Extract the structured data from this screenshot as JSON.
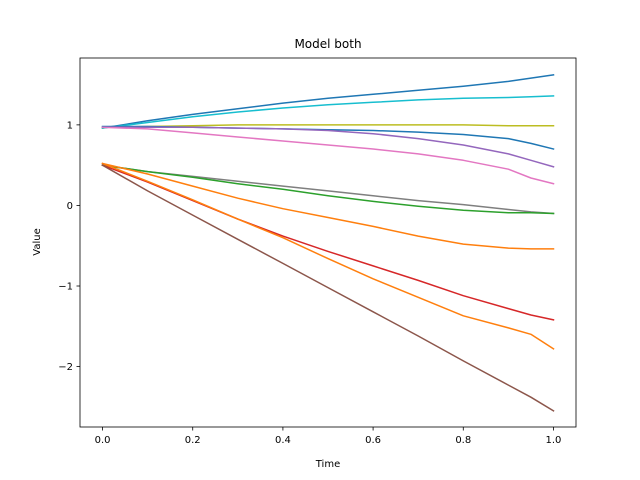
{
  "chart_data": {
    "type": "line",
    "title": "Model both",
    "xlabel": "Time",
    "ylabel": "Value",
    "xlim": [
      -0.05,
      1.05
    ],
    "ylim": [
      -2.75,
      1.83
    ],
    "xticks": [
      0.0,
      0.2,
      0.4,
      0.6,
      0.8,
      1.0
    ],
    "xtick_labels": [
      "0.0",
      "0.2",
      "0.4",
      "0.6",
      "0.8",
      "1.0"
    ],
    "yticks": [
      -2,
      -1,
      0,
      1
    ],
    "ytick_labels": [
      "−2",
      "−1",
      "0",
      "1"
    ],
    "grid": false,
    "legend": "none",
    "x": [
      0.0,
      0.1,
      0.2,
      0.3,
      0.4,
      0.5,
      0.6,
      0.7,
      0.8,
      0.9,
      0.95,
      1.0
    ],
    "series": [
      {
        "color": "#1f77b4",
        "values": [
          0.96,
          1.05,
          1.13,
          1.2,
          1.27,
          1.33,
          1.38,
          1.43,
          1.48,
          1.54,
          1.58,
          1.62
        ]
      },
      {
        "color": "#17becf",
        "values": [
          0.96,
          1.03,
          1.1,
          1.16,
          1.21,
          1.25,
          1.28,
          1.31,
          1.33,
          1.34,
          1.35,
          1.36
        ]
      },
      {
        "color": "#bcbd22",
        "values": [
          0.97,
          0.98,
          0.99,
          1.0,
          1.0,
          1.0,
          1.0,
          1.0,
          1.0,
          0.99,
          0.99,
          0.99
        ]
      },
      {
        "color": "#1f77b4",
        "values": [
          0.98,
          0.98,
          0.97,
          0.96,
          0.95,
          0.94,
          0.93,
          0.91,
          0.88,
          0.83,
          0.77,
          0.7
        ]
      },
      {
        "color": "#9467bd",
        "values": [
          0.97,
          0.97,
          0.97,
          0.96,
          0.95,
          0.93,
          0.89,
          0.83,
          0.75,
          0.64,
          0.56,
          0.48
        ]
      },
      {
        "color": "#e377c2",
        "values": [
          0.97,
          0.95,
          0.9,
          0.85,
          0.8,
          0.75,
          0.7,
          0.64,
          0.56,
          0.45,
          0.34,
          0.27
        ]
      },
      {
        "color": "#7f7f7f",
        "values": [
          0.5,
          0.42,
          0.36,
          0.3,
          0.24,
          0.18,
          0.12,
          0.06,
          0.01,
          -0.05,
          -0.08,
          -0.1
        ]
      },
      {
        "color": "#2ca02c",
        "values": [
          0.5,
          0.42,
          0.35,
          0.27,
          0.2,
          0.12,
          0.05,
          -0.01,
          -0.06,
          -0.09,
          -0.09,
          -0.1
        ]
      },
      {
        "color": "#ff7f0e",
        "values": [
          0.52,
          0.39,
          0.24,
          0.09,
          -0.04,
          -0.15,
          -0.26,
          -0.38,
          -0.48,
          -0.53,
          -0.54,
          -0.54
        ]
      },
      {
        "color": "#d62728",
        "values": [
          0.5,
          0.29,
          0.06,
          -0.17,
          -0.38,
          -0.57,
          -0.75,
          -0.93,
          -1.12,
          -1.28,
          -1.36,
          -1.42
        ]
      },
      {
        "color": "#ff7f0e",
        "values": [
          0.52,
          0.3,
          0.07,
          -0.17,
          -0.4,
          -0.66,
          -0.91,
          -1.14,
          -1.37,
          -1.52,
          -1.6,
          -1.78
        ]
      },
      {
        "color": "#8c564b",
        "values": [
          0.5,
          0.18,
          -0.12,
          -0.42,
          -0.72,
          -1.02,
          -1.32,
          -1.62,
          -1.93,
          -2.23,
          -2.38,
          -2.55
        ]
      }
    ]
  }
}
